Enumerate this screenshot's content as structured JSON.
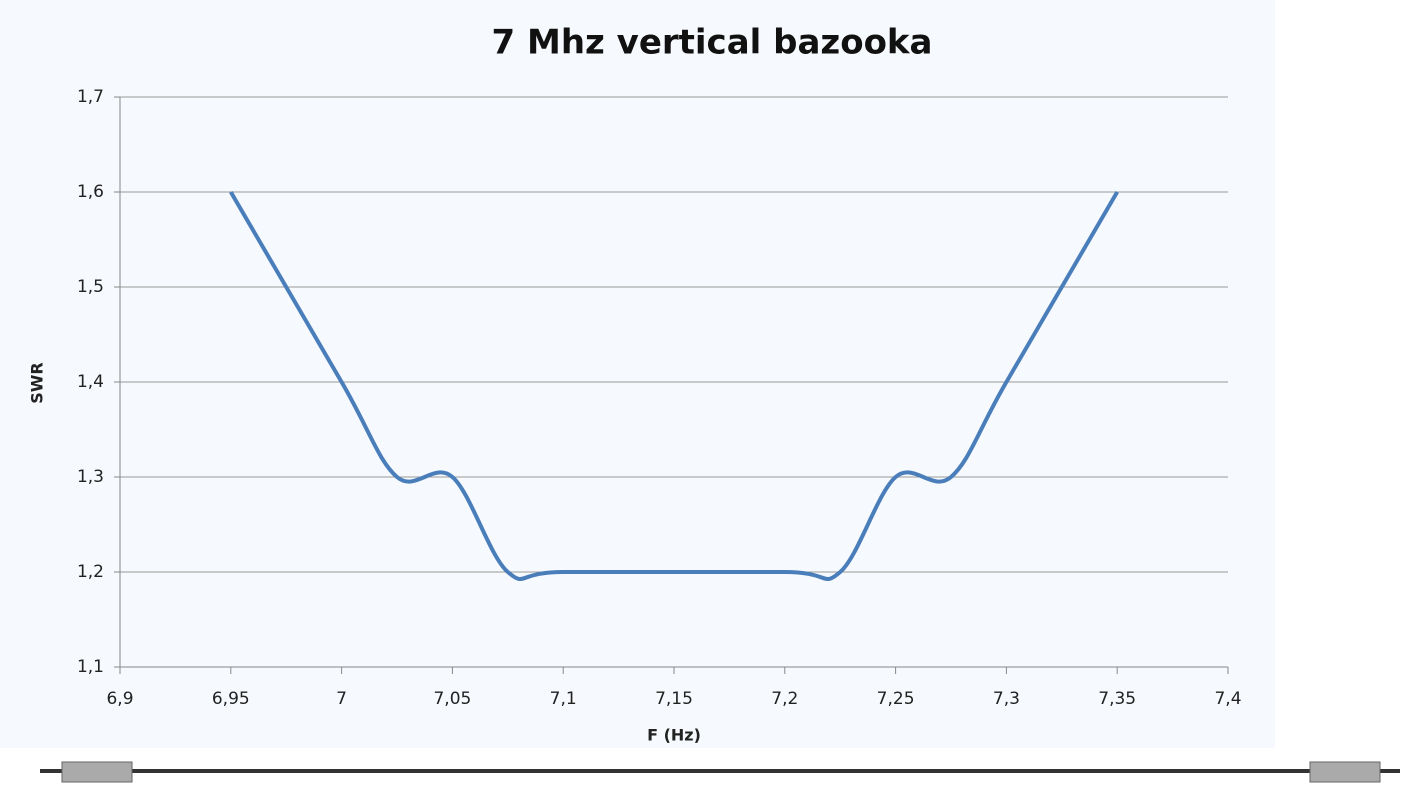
{
  "chart_data": {
    "type": "line",
    "title": "7 Mhz vertical bazooka",
    "x_label": "F (Hz)",
    "y_label": "SWR",
    "x": [
      6.95,
      7,
      7.025,
      7.05,
      7.075,
      7.1,
      7.2,
      7.225,
      7.25,
      7.275,
      7.3,
      7.35
    ],
    "series": [
      {
        "name": "SWR",
        "color": "#4a7ebb",
        "values": [
          1.6,
          1.4,
          1.3,
          1.3,
          1.2,
          1.2,
          1.2,
          1.2,
          1.3,
          1.3,
          1.4,
          1.6
        ]
      }
    ],
    "xlim": [
      6.9,
      7.4
    ],
    "xticks": [
      {
        "value": 6.9,
        "label": "6,9"
      },
      {
        "value": 6.95,
        "label": "6,95"
      },
      7,
      {
        "value": 7.05,
        "label": "7,05"
      },
      {
        "value": 7.1,
        "label": "7,1"
      },
      {
        "value": 7.15,
        "label": "7,15"
      },
      {
        "value": 7.2,
        "label": "7,2"
      },
      {
        "value": 7.25,
        "label": "7,25"
      },
      {
        "value": 7.3,
        "label": "7,3"
      },
      {
        "value": 7.35,
        "label": "7,35"
      },
      {
        "value": 7.4,
        "label": "7,4"
      }
    ],
    "ylim": [
      1.1,
      1.7
    ],
    "yticks": [
      {
        "value": 1.1,
        "label": "1,1"
      },
      {
        "value": 1.2,
        "label": "1,2"
      },
      {
        "value": 1.3,
        "label": "1,3"
      },
      {
        "value": 1.4,
        "label": "1,4"
      },
      {
        "value": 1.5,
        "label": "1,5"
      },
      {
        "value": 1.6,
        "label": "1,6"
      },
      {
        "value": 1.7,
        "label": "1,7"
      }
    ],
    "grid": true
  }
}
